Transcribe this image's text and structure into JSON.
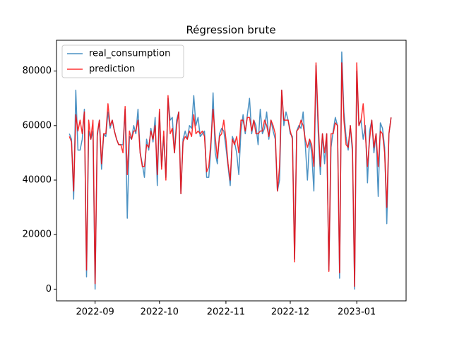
{
  "chart_data": {
    "type": "line",
    "title": "Régression brute",
    "x": [
      19224,
      19225,
      19226,
      19227,
      19228,
      19229,
      19230,
      19231,
      19232,
      19233,
      19234,
      19235,
      19236,
      19237,
      19238,
      19239,
      19240,
      19241,
      19242,
      19243,
      19244,
      19245,
      19246,
      19247,
      19248,
      19249,
      19250,
      19251,
      19252,
      19253,
      19254,
      19255,
      19256,
      19257,
      19258,
      19259,
      19260,
      19261,
      19262,
      19263,
      19264,
      19265,
      19266,
      19267,
      19268,
      19269,
      19270,
      19271,
      19272,
      19273,
      19274,
      19275,
      19276,
      19277,
      19278,
      19279,
      19280,
      19281,
      19282,
      19283,
      19284,
      19285,
      19286,
      19287,
      19288,
      19289,
      19290,
      19291,
      19292,
      19293,
      19294,
      19295,
      19296,
      19297,
      19298,
      19299,
      19300,
      19301,
      19302,
      19303,
      19304,
      19305,
      19306,
      19307,
      19308,
      19309,
      19310,
      19311,
      19312,
      19313,
      19314,
      19315,
      19316,
      19317,
      19318,
      19319,
      19320,
      19321,
      19322,
      19323,
      19324,
      19325,
      19326,
      19327,
      19328,
      19329,
      19330,
      19331,
      19332,
      19333,
      19334,
      19335,
      19336,
      19337,
      19338,
      19339,
      19340,
      19341,
      19342,
      19343,
      19344,
      19345,
      19346,
      19347,
      19348,
      19349,
      19350,
      19351,
      19352,
      19353,
      19354,
      19355,
      19356,
      19357,
      19358,
      19359,
      19360,
      19361,
      19362,
      19363,
      19364,
      19365,
      19366,
      19367,
      19368,
      19369,
      19370,
      19371,
      19372,
      19373,
      19374
    ],
    "series": [
      {
        "name": "real_consumption",
        "color": "#1f77b4",
        "values": [
          57000,
          55000,
          33000,
          73000,
          51000,
          51000,
          55000,
          66000,
          4500,
          58000,
          55000,
          58000,
          0,
          56000,
          62000,
          44000,
          57000,
          56000,
          65000,
          59000,
          62000,
          58000,
          55000,
          53000,
          53000,
          53000,
          66000,
          26000,
          56000,
          55000,
          60000,
          57000,
          66000,
          50000,
          46000,
          41000,
          55000,
          51000,
          59000,
          54000,
          63000,
          38000,
          65000,
          45000,
          56000,
          41000,
          70000,
          62000,
          63000,
          50000,
          62000,
          65000,
          35000,
          55000,
          58000,
          55000,
          60000,
          59000,
          71000,
          60000,
          63000,
          56000,
          57000,
          58000,
          41000,
          41000,
          52000,
          72000,
          50000,
          46000,
          57000,
          59000,
          58000,
          52000,
          45000,
          38000,
          56000,
          54000,
          50000,
          42000,
          58000,
          64000,
          57000,
          64000,
          70000,
          57000,
          62000,
          60000,
          53000,
          66000,
          57000,
          59000,
          65000,
          55000,
          62000,
          58000,
          55000,
          36000,
          40000,
          73000,
          60000,
          65000,
          62000,
          57000,
          56000,
          11000,
          58000,
          60000,
          59000,
          65000,
          53000,
          40000,
          55000,
          50000,
          36000,
          82000,
          58000,
          42000,
          57000,
          46000,
          57000,
          7000,
          52000,
          58000,
          63000,
          60000,
          4000,
          87000,
          65000,
          56000,
          51000,
          60000,
          50000,
          0,
          80000,
          60000,
          62000,
          55000,
          60000,
          39000,
          58000,
          62000,
          50000,
          57000,
          34000,
          61000,
          59000,
          52000,
          24000,
          57000,
          63000
        ]
      },
      {
        "name": "prediction",
        "color": "#ff0000",
        "values": [
          56000,
          54000,
          36000,
          64000,
          58000,
          62000,
          57000,
          65000,
          7000,
          62000,
          55000,
          62000,
          2000,
          57000,
          62000,
          46000,
          57000,
          57000,
          68000,
          60000,
          62000,
          58000,
          55000,
          53000,
          53000,
          50000,
          67000,
          42000,
          58000,
          55000,
          58000,
          58000,
          62000,
          50000,
          45000,
          45000,
          53000,
          52000,
          58000,
          55000,
          60000,
          42000,
          66000,
          44000,
          58000,
          40000,
          71000,
          57000,
          59000,
          50000,
          60000,
          65000,
          35000,
          54000,
          56000,
          55000,
          58000,
          56000,
          64000,
          57000,
          58000,
          57000,
          58000,
          56000,
          43000,
          45000,
          54000,
          66000,
          56000,
          48000,
          56000,
          57000,
          62000,
          55000,
          46000,
          40000,
          55000,
          53000,
          56000,
          50000,
          62000,
          62000,
          58000,
          63000,
          63000,
          58000,
          62000,
          57000,
          57000,
          58000,
          58000,
          62000,
          60000,
          56000,
          62000,
          60000,
          57000,
          36000,
          45000,
          73000,
          62000,
          62000,
          62000,
          58000,
          55000,
          10000,
          58000,
          59000,
          62000,
          60000,
          55000,
          52000,
          55000,
          53000,
          45000,
          83000,
          62000,
          45000,
          57000,
          50000,
          57000,
          6500,
          57000,
          57000,
          61000,
          60000,
          6000,
          83000,
          62000,
          53000,
          52000,
          60000,
          52000,
          1000,
          83000,
          60000,
          62000,
          68000,
          57000,
          45000,
          55000,
          62000,
          52000,
          57000,
          45000,
          58000,
          57000,
          50000,
          30000,
          57000,
          63000
        ]
      }
    ],
    "xlim": [
      19218,
      19381
    ],
    "xticks": [
      {
        "value": 19236,
        "label": "2022-09"
      },
      {
        "value": 19266,
        "label": "2022-10"
      },
      {
        "value": 19297,
        "label": "2022-11"
      },
      {
        "value": 19327,
        "label": "2022-12"
      },
      {
        "value": 19358,
        "label": "2023-01"
      }
    ],
    "ylim": [
      -4300,
      91300
    ],
    "yticks": [
      0,
      20000,
      40000,
      60000,
      80000
    ],
    "legend": "upper left"
  }
}
